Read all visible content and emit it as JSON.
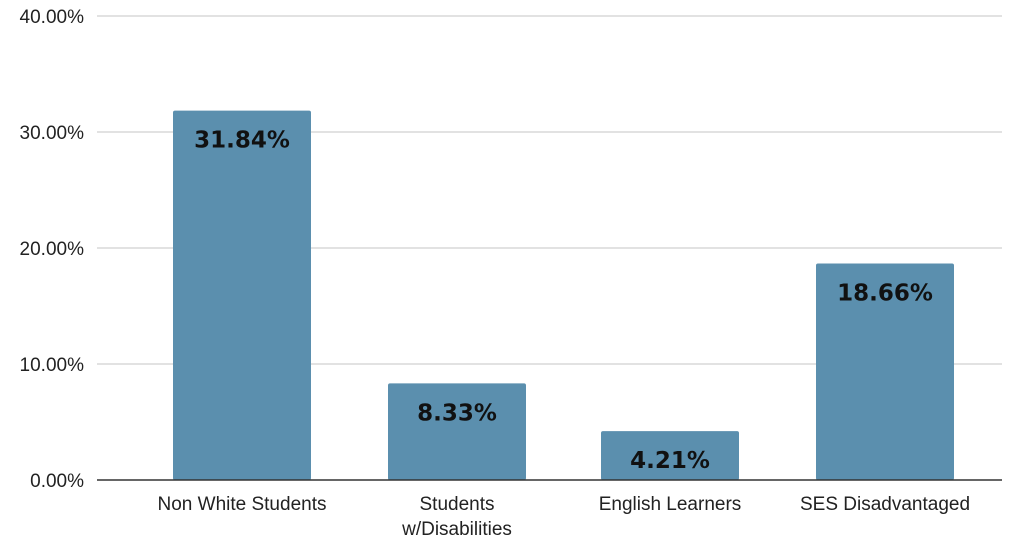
{
  "chart_data": {
    "type": "bar",
    "categories": [
      "Non White Students",
      "Students w/Disabilities",
      "English Learners",
      "SES Disadvantaged"
    ],
    "category_label_lines": [
      [
        "Non White Students"
      ],
      [
        "Students",
        "w/Disabilities"
      ],
      [
        "English Learners"
      ],
      [
        "SES Disadvantaged"
      ]
    ],
    "values": [
      31.84,
      8.33,
      4.21,
      18.66
    ],
    "data_labels": [
      "31.84%",
      "8.33%",
      "4.21%",
      "18.66%"
    ],
    "title": "",
    "xlabel": "",
    "ylabel": "",
    "ylim": [
      0,
      40
    ],
    "yticks": [
      0,
      10,
      20,
      30,
      40
    ],
    "ytick_labels": [
      "0.00%",
      "10.00%",
      "20.00%",
      "30.00%",
      "40.00%"
    ],
    "grid": true,
    "legend": "none",
    "bar_color": "#5b8fae",
    "grid_color": "#d0d0d0",
    "axis_color": "#333333"
  }
}
